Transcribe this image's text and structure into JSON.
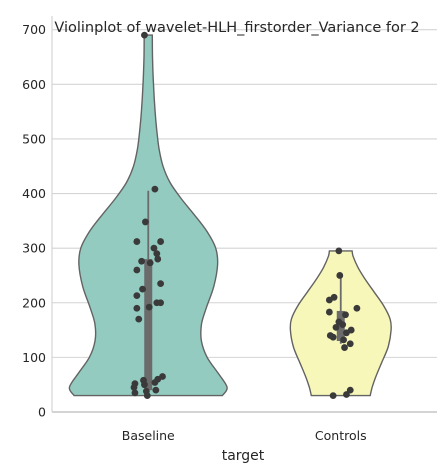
{
  "chart_data": {
    "type": "violin",
    "title": "Violinplot of wavelet-HLH_firstorder_Variance for 2",
    "xlabel": "target",
    "ylabel": "",
    "categories": [
      "Baseline",
      "Controls"
    ],
    "ylim": [
      0,
      725
    ],
    "yticks": [
      0,
      100,
      200,
      300,
      400,
      500,
      600,
      700
    ],
    "ytick_labels": [
      "0",
      "100",
      "200",
      "300",
      "400",
      "500",
      "600",
      "700"
    ],
    "grid": "horizontal",
    "colors": {
      "Baseline": "#93cbc0",
      "Controls": "#f7f7b9",
      "outline": "#636363",
      "point": "#3a3a3a",
      "box": "#6b6b6b",
      "grid": "#d4d4d4"
    },
    "violins": [
      {
        "category": "Baseline",
        "cut_min": 30,
        "cut_max": 690,
        "half_width_profile": [
          [
            30,
            0.78
          ],
          [
            45,
            0.83
          ],
          [
            70,
            0.74
          ],
          [
            100,
            0.62
          ],
          [
            130,
            0.56
          ],
          [
            160,
            0.56
          ],
          [
            190,
            0.61
          ],
          [
            230,
            0.69
          ],
          [
            270,
            0.73
          ],
          [
            300,
            0.71
          ],
          [
            330,
            0.62
          ],
          [
            360,
            0.49
          ],
          [
            390,
            0.35
          ],
          [
            420,
            0.23
          ],
          [
            450,
            0.155
          ],
          [
            480,
            0.115
          ],
          [
            510,
            0.093
          ],
          [
            550,
            0.072
          ],
          [
            600,
            0.055
          ],
          [
            650,
            0.045
          ],
          [
            690,
            0.043
          ]
        ],
        "box": {
          "q1": 40,
          "median": 190,
          "q3": 280,
          "whisker_low": 30,
          "whisker_high": 405
        },
        "points": [
          [
            -0.04,
            690
          ],
          [
            0.07,
            408
          ],
          [
            -0.03,
            348
          ],
          [
            -0.12,
            312
          ],
          [
            0.13,
            312
          ],
          [
            0.06,
            300
          ],
          [
            0.09,
            290
          ],
          [
            0.1,
            280
          ],
          [
            -0.07,
            276
          ],
          [
            0.02,
            273
          ],
          [
            -0.12,
            260
          ],
          [
            0.13,
            235
          ],
          [
            -0.06,
            225
          ],
          [
            -0.12,
            213
          ],
          [
            0.09,
            200
          ],
          [
            0.13,
            200
          ],
          [
            0.01,
            192
          ],
          [
            -0.12,
            190
          ],
          [
            -0.1,
            170
          ],
          [
            0.15,
            65
          ],
          [
            0.1,
            60
          ],
          [
            -0.05,
            58
          ],
          [
            0.07,
            54
          ],
          [
            -0.14,
            52
          ],
          [
            -0.04,
            50
          ],
          [
            -0.15,
            45
          ],
          [
            0.08,
            40
          ],
          [
            -0.02,
            38
          ],
          [
            -0.14,
            35
          ],
          [
            -0.01,
            30
          ]
        ]
      },
      {
        "category": "Controls",
        "cut_min": 30,
        "cut_max": 295,
        "half_width_profile": [
          [
            30,
            0.31
          ],
          [
            45,
            0.33
          ],
          [
            65,
            0.37
          ],
          [
            90,
            0.43
          ],
          [
            120,
            0.5
          ],
          [
            150,
            0.53
          ],
          [
            170,
            0.52
          ],
          [
            195,
            0.45
          ],
          [
            220,
            0.35
          ],
          [
            245,
            0.25
          ],
          [
            265,
            0.18
          ],
          [
            285,
            0.13
          ],
          [
            295,
            0.12
          ]
        ],
        "box": {
          "q1": 130,
          "median": 165,
          "q3": 185,
          "whisker_low": 125,
          "whisker_high": 250
        },
        "points": [
          [
            -0.02,
            295
          ],
          [
            -0.01,
            250
          ],
          [
            -0.07,
            210
          ],
          [
            -0.12,
            205
          ],
          [
            0.17,
            190
          ],
          [
            -0.12,
            183
          ],
          [
            0.05,
            178
          ],
          [
            -0.02,
            165
          ],
          [
            0.02,
            160
          ],
          [
            -0.05,
            155
          ],
          [
            0.11,
            150
          ],
          [
            0.06,
            145
          ],
          [
            -0.11,
            140
          ],
          [
            -0.08,
            137
          ],
          [
            0.03,
            132
          ],
          [
            0.1,
            125
          ],
          [
            0.04,
            118
          ],
          [
            0.1,
            40
          ],
          [
            0.06,
            32
          ],
          [
            -0.08,
            30
          ]
        ]
      }
    ]
  }
}
